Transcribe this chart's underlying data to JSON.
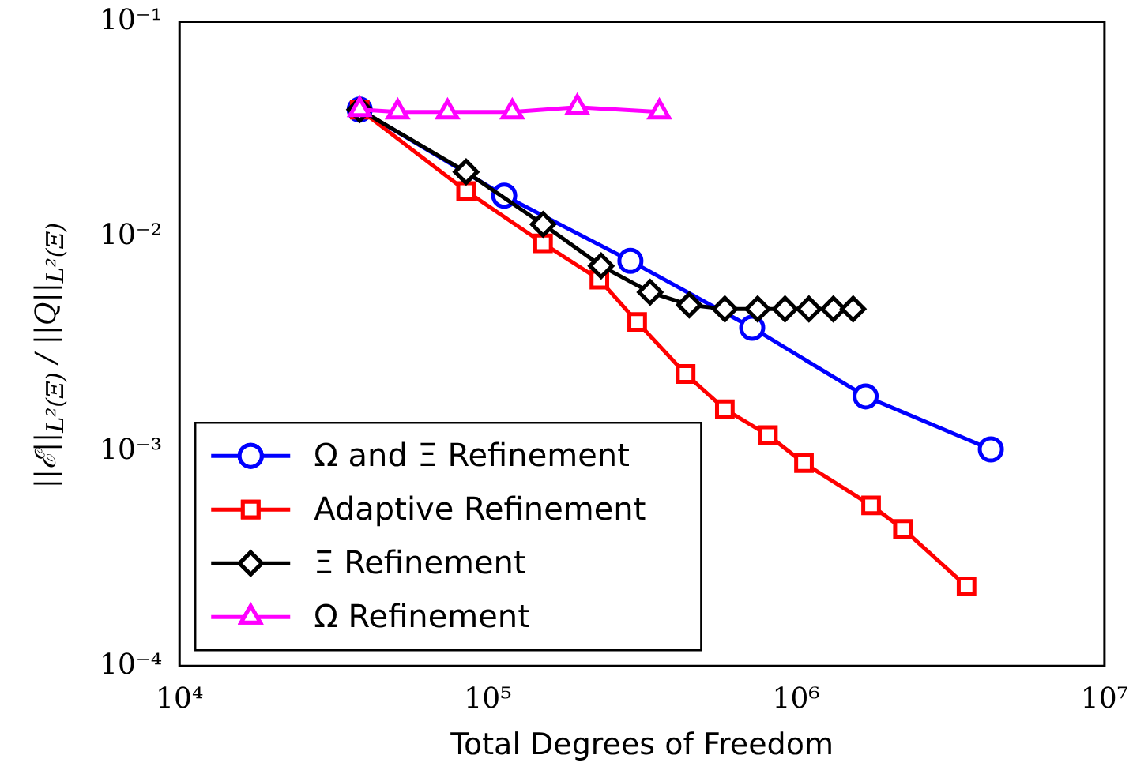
{
  "chart_data": {
    "type": "line",
    "xlabel": "Total Degrees of Freedom",
    "ylabel": "||ℰ||$_{L²(Ξ)}$ / ||Q||$_{L²(Ξ)}$",
    "log": "xy",
    "grid": false,
    "legend": "bottom left",
    "xlim": [
      10000,
      10000000
    ],
    "xticks": [
      {
        "value": 10000,
        "label": "10⁴"
      },
      {
        "value": 100000,
        "label": "10⁵"
      },
      {
        "value": 1000000,
        "label": "10⁶"
      },
      {
        "value": 10000000,
        "label": "10⁷"
      }
    ],
    "ylim": [
      0.0001,
      0.1
    ],
    "yticks": [
      {
        "value": 0.0001,
        "label": "10⁻⁴"
      },
      {
        "value": 0.001,
        "label": "10⁻³"
      },
      {
        "value": 0.01,
        "label": "10⁻²"
      },
      {
        "value": 0.1,
        "label": "10⁻¹"
      }
    ],
    "series": [
      {
        "name": "Ω and Ξ Refinement",
        "color": "#0000ff",
        "marker": "circle",
        "x": [
          38400,
          113000,
          290000,
          720000,
          1680000,
          4280000
        ],
        "values": [
          0.039,
          0.0155,
          0.0077,
          0.00376,
          0.0018,
          0.00102
        ]
      },
      {
        "name": "Adaptive Refinement",
        "color": "#ff0000",
        "marker": "square",
        "x": [
          38400,
          85000,
          151000,
          230000,
          305000,
          438000,
          587000,
          810000,
          1060000,
          1750000,
          2220000,
          3570000
        ],
        "values": [
          0.039,
          0.0163,
          0.0093,
          0.0063,
          0.004,
          0.00229,
          0.00157,
          0.00119,
          0.00088,
          0.00056,
          0.000435,
          0.000235
        ]
      },
      {
        "name": "Ξ Refinement",
        "color": "#000000",
        "marker": "diamond",
        "x": [
          38400,
          85000,
          151000,
          233000,
          336000,
          450000,
          587000,
          750000,
          920000,
          1100000,
          1320000,
          1530000
        ],
        "values": [
          0.039,
          0.02,
          0.0114,
          0.0073,
          0.0055,
          0.0048,
          0.0046,
          0.0046,
          0.0046,
          0.0046,
          0.0046,
          0.0046
        ]
      },
      {
        "name": "Ω Refinement",
        "color": "#ff00ff",
        "marker": "triangle",
        "x": [
          38400,
          51000,
          74000,
          120000,
          195000,
          360000
        ],
        "values": [
          0.039,
          0.038,
          0.038,
          0.038,
          0.04,
          0.038
        ]
      }
    ]
  }
}
